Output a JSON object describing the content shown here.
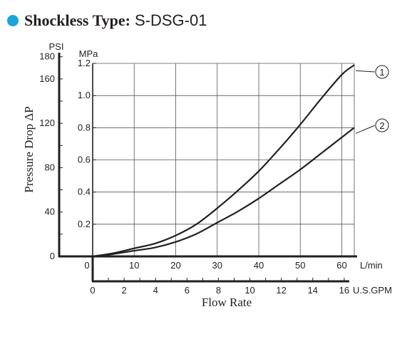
{
  "title": {
    "label": "Shockless Type:",
    "model": "S-DSG-01",
    "bullet_color": "#1aa4dc"
  },
  "chart_data": {
    "type": "line",
    "ylabel": "Pressure Drop ΔP",
    "xlabel": "Flow Rate",
    "y_units": {
      "mpa": "MPa",
      "psi": "PSI"
    },
    "x_units": {
      "lmin": "L/min",
      "gpm": "U.S.GPM"
    },
    "ylim_mpa": [
      0,
      1.2
    ],
    "xlim_lmin": [
      0,
      63
    ],
    "xlim_gpm": [
      0,
      16.64
    ],
    "grid": true,
    "mpa_ticks": [
      {
        "value": 0.2,
        "label": "0.2"
      },
      {
        "value": 0.4,
        "label": "0.4"
      },
      {
        "value": 0.6,
        "label": "0.6"
      },
      {
        "value": 0.8,
        "label": "0.8"
      },
      {
        "value": 1.0,
        "label": "1.0"
      },
      {
        "value": 1.2,
        "label": "1.2"
      }
    ],
    "psi_ticks": [
      {
        "value": 0,
        "label": "0"
      },
      {
        "value": 40,
        "label": "40"
      },
      {
        "value": 80,
        "label": "80"
      },
      {
        "value": 120,
        "label": "120"
      },
      {
        "value": 160,
        "label": "160"
      },
      {
        "value": 180,
        "label": "180"
      }
    ],
    "lmin_ticks": [
      {
        "value": 0,
        "label": "0"
      },
      {
        "value": 10,
        "label": "10"
      },
      {
        "value": 20,
        "label": "20"
      },
      {
        "value": 30,
        "label": "30"
      },
      {
        "value": 40,
        "label": "40"
      },
      {
        "value": 50,
        "label": "50"
      },
      {
        "value": 60,
        "label": "60"
      }
    ],
    "gpm_ticks": [
      {
        "value": 0,
        "label": "0"
      },
      {
        "value": 2,
        "label": "2"
      },
      {
        "value": 4,
        "label": "4"
      },
      {
        "value": 6,
        "label": "6"
      },
      {
        "value": 8,
        "label": "8"
      },
      {
        "value": 10,
        "label": "10"
      },
      {
        "value": 12,
        "label": "12"
      },
      {
        "value": 14,
        "label": "14"
      },
      {
        "value": 16,
        "label": "16"
      }
    ],
    "series": [
      {
        "label": "1",
        "points": [
          [
            0,
            0
          ],
          [
            5,
            0.02
          ],
          [
            10,
            0.05
          ],
          [
            15,
            0.08
          ],
          [
            20,
            0.13
          ],
          [
            25,
            0.2
          ],
          [
            30,
            0.3
          ],
          [
            35,
            0.41
          ],
          [
            40,
            0.53
          ],
          [
            45,
            0.67
          ],
          [
            50,
            0.82
          ],
          [
            55,
            0.98
          ],
          [
            60,
            1.13
          ],
          [
            63,
            1.19
          ]
        ]
      },
      {
        "label": "2",
        "points": [
          [
            0,
            0
          ],
          [
            5,
            0.015
          ],
          [
            10,
            0.035
          ],
          [
            15,
            0.055
          ],
          [
            20,
            0.09
          ],
          [
            25,
            0.14
          ],
          [
            30,
            0.21
          ],
          [
            35,
            0.28
          ],
          [
            40,
            0.36
          ],
          [
            45,
            0.45
          ],
          [
            50,
            0.54
          ],
          [
            55,
            0.64
          ],
          [
            60,
            0.74
          ],
          [
            63,
            0.8
          ]
        ]
      }
    ]
  }
}
